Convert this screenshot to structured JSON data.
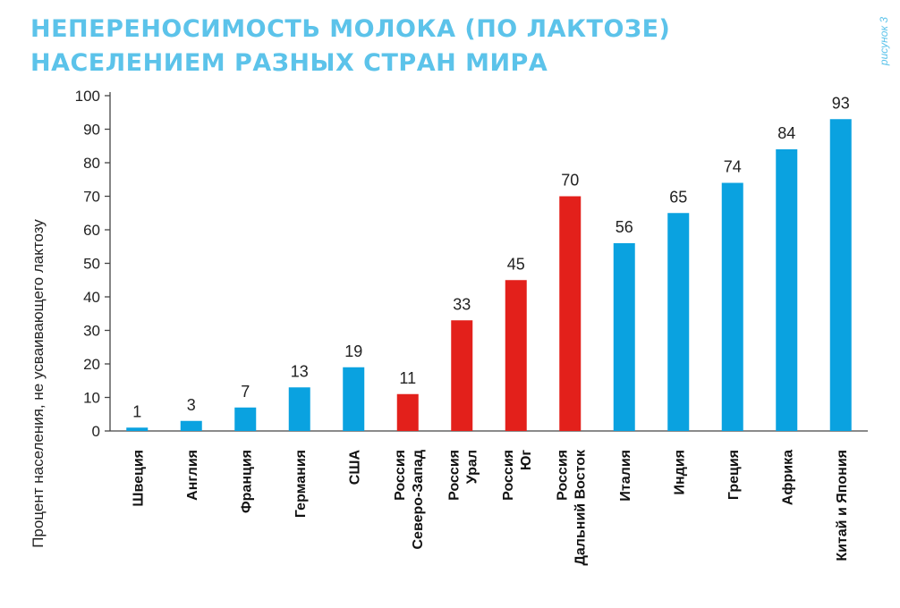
{
  "title_lines": [
    "НЕПЕРЕНОСИМОСТЬ МОЛОКА (ПО ЛАКТОЗЕ)",
    "НАСЕЛЕНИЕМ РАЗНЫХ СТРАН МИРА"
  ],
  "figure_label": "рисунок 3",
  "colors": {
    "title": "#5cc3ea",
    "blue": "#0aa2e0",
    "red": "#e3201b"
  },
  "chart_data": {
    "type": "bar",
    "title": "НЕПЕРЕНОСИМОСТЬ МОЛОКА (ПО ЛАКТОЗЕ) НАСЕЛЕНИЕМ РАЗНЫХ СТРАН МИРА",
    "xlabel": "",
    "ylabel": "Процент населения, не усваивающего лактозу",
    "ylim": [
      0,
      100
    ],
    "yticks": [
      0,
      10,
      20,
      30,
      40,
      50,
      60,
      70,
      80,
      90,
      100
    ],
    "categories": [
      [
        "Швеция"
      ],
      [
        "Англия"
      ],
      [
        "Франция"
      ],
      [
        "Германия"
      ],
      [
        "США"
      ],
      [
        "Россия",
        "Северо-Запад"
      ],
      [
        "Россия",
        "Урал"
      ],
      [
        "Россия",
        "Юг"
      ],
      [
        "Россия",
        "Дальний Восток"
      ],
      [
        "Италия"
      ],
      [
        "Индия"
      ],
      [
        "Греция"
      ],
      [
        "Африка"
      ],
      [
        "Китай и Япония"
      ]
    ],
    "values": [
      1,
      3,
      7,
      13,
      19,
      11,
      33,
      45,
      70,
      56,
      65,
      74,
      84,
      93
    ],
    "bar_colors": [
      "blue",
      "blue",
      "blue",
      "blue",
      "blue",
      "red",
      "red",
      "red",
      "red",
      "blue",
      "blue",
      "blue",
      "blue",
      "blue"
    ]
  }
}
